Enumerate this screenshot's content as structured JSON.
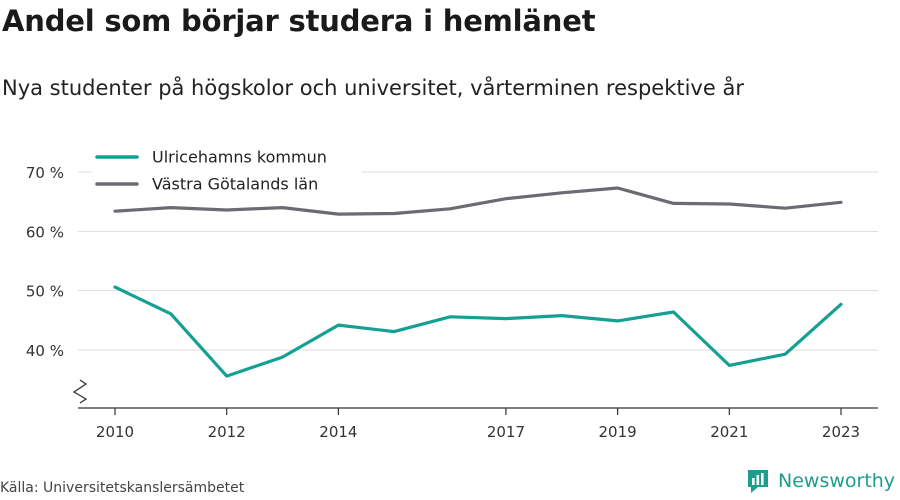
{
  "header": {
    "title": "Andel som börjar studera i hemlänet",
    "subtitle": "Nya studenter på högskolor och universitet, vårterminen respektive år"
  },
  "footer": {
    "source": "Källa: Universitetskanslersämbetet",
    "brand": "Newsworthy"
  },
  "colors": {
    "teal": "#14a092",
    "gray": "#6b6b72",
    "grid": "#dddddd",
    "axis": "#333333"
  },
  "chart_data": {
    "type": "line",
    "title": "Andel som börjar studera i hemlänet",
    "subtitle": "Nya studenter på högskolor och universitet, vårterminen respektive år",
    "x": [
      2010,
      2011,
      2012,
      2013,
      2014,
      2015,
      2016,
      2017,
      2018,
      2019,
      2020,
      2021,
      2022,
      2023
    ],
    "x_ticks": [
      2010,
      2012,
      2014,
      2017,
      2019,
      2021,
      2023
    ],
    "y_ticks": [
      40,
      50,
      60,
      70
    ],
    "y_tick_labels": [
      "40 %",
      "50 %",
      "60 %",
      "70 %"
    ],
    "ylim": [
      30,
      72
    ],
    "y_axis_break": true,
    "grid": true,
    "legend_position": "top-left",
    "series": [
      {
        "name": "Ulricehamns kommun",
        "color": "#14a092",
        "values": [
          50.6,
          46.1,
          35.6,
          38.8,
          44.2,
          43.1,
          45.6,
          45.3,
          45.8,
          44.9,
          46.4,
          37.4,
          39.3,
          47.7
        ]
      },
      {
        "name": "Västra Götalands län",
        "color": "#6b6b72",
        "values": [
          63.4,
          64.0,
          63.6,
          64.0,
          62.9,
          63.0,
          63.8,
          65.5,
          66.5,
          67.3,
          64.7,
          64.6,
          63.9,
          64.9
        ]
      }
    ]
  }
}
